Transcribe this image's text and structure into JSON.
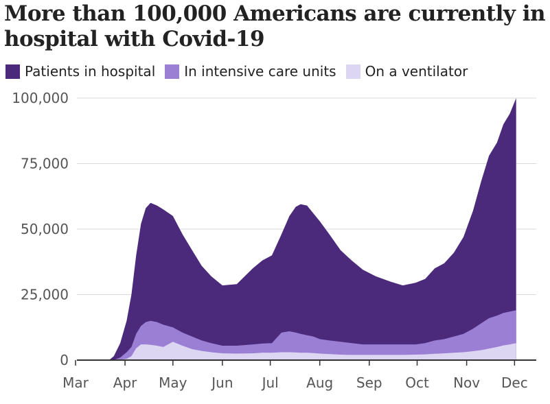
{
  "chart_data": {
    "type": "area",
    "title": "More than 100,000 Americans are currently in hospital with Covid-19",
    "legend_position": "top",
    "grid": true,
    "ylim": [
      0,
      100000
    ],
    "y_ticks": [
      "100,000",
      "75,000",
      "50,000",
      "25,000",
      "0"
    ],
    "x_ticks": [
      "Mar",
      "Apr",
      "May",
      "Jun",
      "Jul",
      "Aug",
      "Sep",
      "Oct",
      "Nov",
      "Dec"
    ],
    "x": [
      "Mar 1",
      "Mar 22",
      "Mar 25",
      "Mar 29",
      "Apr 2",
      "Apr 5",
      "Apr 8",
      "Apr 11",
      "Apr 14",
      "Apr 17",
      "Apr 21",
      "Apr 25",
      "May 1",
      "May 7",
      "May 13",
      "May 19",
      "May 25",
      "Jun 1",
      "Jun 10",
      "Jun 20",
      "Jun 26",
      "Jul 2",
      "Jul 8",
      "Jul 13",
      "Jul 17",
      "Jul 20",
      "Jul 24",
      "Jul 28",
      "Aug 1",
      "Aug 7",
      "Aug 14",
      "Aug 21",
      "Aug 28",
      "Sep 5",
      "Sep 14",
      "Sep 22",
      "Sep 30",
      "Oct 6",
      "Oct 12",
      "Oct 18",
      "Oct 24",
      "Oct 30",
      "Nov 5",
      "Nov 10",
      "Nov 15",
      "Nov 20",
      "Nov 24",
      "Nov 28",
      "Dec 2"
    ],
    "series": [
      {
        "name": "Patients in hospital",
        "color": "#4b2a7b",
        "values": [
          0,
          0,
          1500,
          6500,
          15000,
          25000,
          40000,
          52000,
          58000,
          60000,
          59000,
          57500,
          55000,
          48000,
          42000,
          36000,
          32000,
          28500,
          29000,
          35000,
          38000,
          40000,
          48000,
          55000,
          58500,
          59500,
          59000,
          56000,
          53000,
          48000,
          42000,
          38000,
          34500,
          32000,
          30000,
          28500,
          29500,
          31000,
          35000,
          37000,
          41000,
          47000,
          57000,
          68000,
          78000,
          83000,
          90000,
          94000,
          100000
        ]
      },
      {
        "name": "In intensive care units",
        "color": "#9b7fd4",
        "values": [
          0,
          0,
          100,
          1000,
          3000,
          5000,
          10000,
          13000,
          14500,
          15000,
          14500,
          13500,
          12500,
          10500,
          9000,
          7500,
          6500,
          5500,
          5500,
          6000,
          6300,
          6500,
          10500,
          11000,
          10500,
          10000,
          9500,
          9000,
          8000,
          7500,
          7000,
          6500,
          6000,
          6000,
          6000,
          6000,
          6000,
          6500,
          7500,
          8000,
          9000,
          10000,
          12000,
          14000,
          16000,
          17000,
          18000,
          18500,
          19000
        ]
      },
      {
        "name": "On a ventilator",
        "color": "#ddd6f2",
        "values": [
          0,
          0,
          0,
          200,
          500,
          1500,
          4500,
          6000,
          6000,
          5800,
          5500,
          5000,
          7000,
          5500,
          4200,
          3500,
          3000,
          2600,
          2500,
          2600,
          2800,
          2800,
          3000,
          3000,
          2900,
          2800,
          2800,
          2700,
          2500,
          2300,
          2100,
          2000,
          2000,
          2000,
          2000,
          2000,
          2100,
          2200,
          2400,
          2600,
          2800,
          3000,
          3400,
          3800,
          4400,
          5000,
          5600,
          6000,
          6500
        ]
      }
    ]
  }
}
